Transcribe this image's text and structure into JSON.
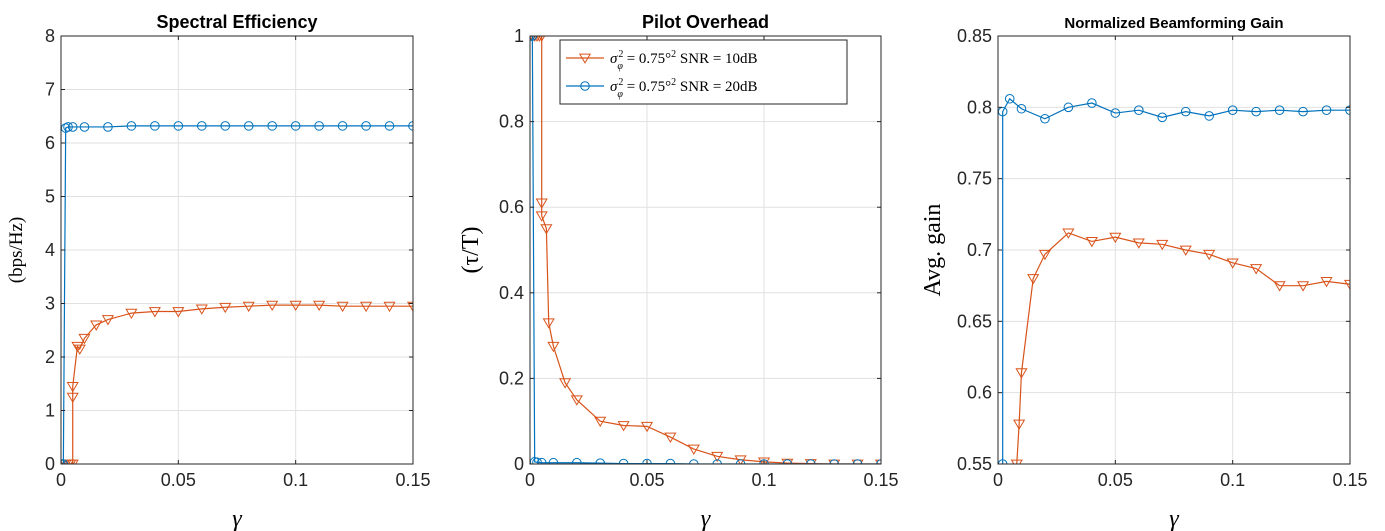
{
  "colors": {
    "snr10": "#d95319",
    "snr20": "#0072bd"
  },
  "legend": {
    "entries": [
      {
        "sigma": "σ",
        "sub": "φ",
        "sup": "2",
        "rest": " = 0.75°",
        "sup2": "2",
        "snr": " SNR = 10dB"
      },
      {
        "sigma": "σ",
        "sub": "φ",
        "sup": "2",
        "rest": " = 0.75°",
        "sup2": "2",
        "snr": " SNR = 20dB"
      }
    ]
  },
  "chart_data": [
    {
      "type": "line",
      "title": "Spectral Efficiency",
      "xlabel": "γ",
      "ylabel": "(bps/Hz)",
      "xlim": [
        0,
        0.15
      ],
      "ylim": [
        0,
        8
      ],
      "xticks": [
        "0",
        "0.05",
        "0.1",
        "0.15"
      ],
      "yticks": [
        "0",
        "1",
        "2",
        "3",
        "4",
        "5",
        "6",
        "7",
        "8"
      ],
      "grid": true,
      "series": [
        {
          "name": "σφ² = 0.75°² SNR = 10dB",
          "color": "#d95319",
          "marker": "triangle-down",
          "x": [
            0,
            0.001,
            0.002,
            0.003,
            0.004,
            0.005,
            0.005,
            0.005,
            0.007,
            0.008,
            0.01,
            0.015,
            0.02,
            0.03,
            0.04,
            0.05,
            0.06,
            0.07,
            0.08,
            0.09,
            0.1,
            0.11,
            0.12,
            0.13,
            0.14,
            0.15
          ],
          "y": [
            0,
            0,
            0,
            0,
            0,
            0,
            1.25,
            1.45,
            2.2,
            2.15,
            2.35,
            2.6,
            2.7,
            2.82,
            2.85,
            2.85,
            2.9,
            2.93,
            2.95,
            2.97,
            2.97,
            2.97,
            2.95,
            2.95,
            2.95,
            2.95
          ]
        },
        {
          "name": "σφ² = 0.75°² SNR = 20dB",
          "color": "#0072bd",
          "marker": "circle",
          "x": [
            0,
            0.001,
            0.002,
            0.003,
            0.005,
            0.01,
            0.02,
            0.03,
            0.04,
            0.05,
            0.06,
            0.07,
            0.08,
            0.09,
            0.1,
            0.11,
            0.12,
            0.13,
            0.14,
            0.15
          ],
          "y": [
            0,
            0,
            6.28,
            6.3,
            6.3,
            6.3,
            6.3,
            6.32,
            6.32,
            6.32,
            6.32,
            6.32,
            6.32,
            6.32,
            6.32,
            6.32,
            6.32,
            6.32,
            6.32,
            6.32
          ]
        }
      ]
    },
    {
      "type": "line",
      "title": "Pilot Overhead",
      "xlabel": "γ",
      "ylabel": "(τ/T)",
      "xlim": [
        0,
        0.15
      ],
      "ylim": [
        0,
        1
      ],
      "xticks": [
        "0",
        "0.05",
        "0.1",
        "0.15"
      ],
      "yticks": [
        "0",
        "0.2",
        "0.4",
        "0.6",
        "0.8",
        "1"
      ],
      "grid": true,
      "legend": "top-right",
      "series": [
        {
          "name": "σφ² = 0.75°² SNR = 10dB",
          "color": "#d95319",
          "marker": "triangle-down",
          "x": [
            0,
            0.001,
            0.002,
            0.003,
            0.004,
            0.005,
            0.005,
            0.005,
            0.007,
            0.008,
            0.01,
            0.015,
            0.02,
            0.03,
            0.04,
            0.05,
            0.06,
            0.07,
            0.08,
            0.09,
            0.1,
            0.11,
            0.12,
            0.13,
            0.14,
            0.15
          ],
          "y": [
            1,
            1,
            1,
            1,
            1,
            1,
            0.61,
            0.58,
            0.55,
            0.33,
            0.275,
            0.19,
            0.15,
            0.1,
            0.09,
            0.088,
            0.063,
            0.035,
            0.018,
            0.01,
            0.005,
            0.002,
            0.001,
            0,
            0,
            0
          ]
        },
        {
          "name": "σφ² = 0.75°² SNR = 20dB",
          "color": "#0072bd",
          "marker": "circle",
          "x": [
            0,
            0.001,
            0.002,
            0.003,
            0.005,
            0.01,
            0.02,
            0.03,
            0.04,
            0.05,
            0.06,
            0.07,
            0.08,
            0.09,
            0.1,
            0.11,
            0.12,
            0.13,
            0.14,
            0.15
          ],
          "y": [
            1,
            1,
            0.005,
            0.004,
            0.003,
            0.003,
            0.003,
            0.002,
            0.001,
            0.001,
            0.001,
            0,
            0,
            0,
            0,
            0,
            0,
            0,
            0,
            0
          ]
        }
      ]
    },
    {
      "type": "line",
      "title": "Normalized Beamforming Gain",
      "xlabel": "γ",
      "ylabel": "Avg. gain",
      "xlim": [
        0,
        0.15
      ],
      "ylim": [
        0.55,
        0.85
      ],
      "xticks": [
        "0",
        "0.05",
        "0.1",
        "0.15"
      ],
      "yticks": [
        "0.55",
        "0.6",
        "0.65",
        "0.7",
        "0.75",
        "0.8",
        "0.85"
      ],
      "grid": true,
      "series": [
        {
          "name": "σφ² = 0.75°² SNR = 10dB",
          "color": "#d95319",
          "marker": "triangle-down",
          "x": [
            0.008,
            0.009,
            0.01,
            0.015,
            0.02,
            0.03,
            0.04,
            0.05,
            0.06,
            0.07,
            0.08,
            0.09,
            0.1,
            0.11,
            0.12,
            0.13,
            0.14,
            0.15
          ],
          "y": [
            0.55,
            0.578,
            0.614,
            0.68,
            0.697,
            0.712,
            0.706,
            0.709,
            0.705,
            0.704,
            0.7,
            0.697,
            0.691,
            0.687,
            0.675,
            0.675,
            0.678,
            0.676
          ]
        },
        {
          "name": "σφ² = 0.75°² SNR = 20dB",
          "color": "#0072bd",
          "marker": "circle",
          "x": [
            0.002,
            0.002,
            0.005,
            0.01,
            0.02,
            0.03,
            0.04,
            0.05,
            0.06,
            0.07,
            0.08,
            0.09,
            0.1,
            0.11,
            0.12,
            0.13,
            0.14,
            0.15
          ],
          "y": [
            0.55,
            0.797,
            0.806,
            0.799,
            0.792,
            0.8,
            0.803,
            0.796,
            0.798,
            0.793,
            0.797,
            0.794,
            0.798,
            0.797,
            0.798,
            0.797,
            0.798,
            0.798
          ]
        }
      ]
    }
  ]
}
